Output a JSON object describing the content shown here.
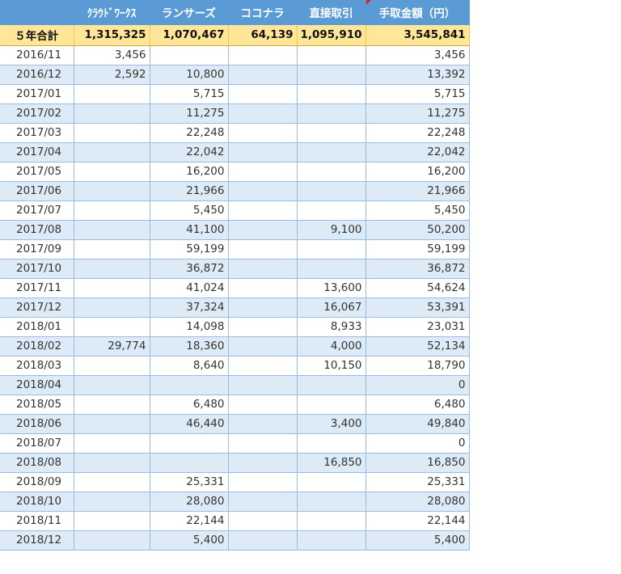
{
  "header": {
    "col_date": "",
    "col_crowdworks": "ｸﾗｳﾄﾞﾜｰｸｽ",
    "col_lancers": "ランサーズ",
    "col_coconala": "ココナラ",
    "col_direct": "直接取引",
    "col_total": "手取金額（円）"
  },
  "total": {
    "label": "５年合計",
    "crowdworks": "1,315,325",
    "lancers": "1,070,467",
    "coconala": "64,139",
    "direct": "1,095,910",
    "total": "3,545,841"
  },
  "rows": [
    {
      "date": "2016/11",
      "crowdworks": "3,456",
      "lancers": "",
      "coconala": "",
      "direct": "",
      "total": "3,456"
    },
    {
      "date": "2016/12",
      "crowdworks": "2,592",
      "lancers": "10,800",
      "coconala": "",
      "direct": "",
      "total": "13,392"
    },
    {
      "date": "2017/01",
      "crowdworks": "",
      "lancers": "5,715",
      "coconala": "",
      "direct": "",
      "total": "5,715"
    },
    {
      "date": "2017/02",
      "crowdworks": "",
      "lancers": "11,275",
      "coconala": "",
      "direct": "",
      "total": "11,275"
    },
    {
      "date": "2017/03",
      "crowdworks": "",
      "lancers": "22,248",
      "coconala": "",
      "direct": "",
      "total": "22,248"
    },
    {
      "date": "2017/04",
      "crowdworks": "",
      "lancers": "22,042",
      "coconala": "",
      "direct": "",
      "total": "22,042"
    },
    {
      "date": "2017/05",
      "crowdworks": "",
      "lancers": "16,200",
      "coconala": "",
      "direct": "",
      "total": "16,200"
    },
    {
      "date": "2017/06",
      "crowdworks": "",
      "lancers": "21,966",
      "coconala": "",
      "direct": "",
      "total": "21,966"
    },
    {
      "date": "2017/07",
      "crowdworks": "",
      "lancers": "5,450",
      "coconala": "",
      "direct": "",
      "total": "5,450"
    },
    {
      "date": "2017/08",
      "crowdworks": "",
      "lancers": "41,100",
      "coconala": "",
      "direct": "9,100",
      "total": "50,200"
    },
    {
      "date": "2017/09",
      "crowdworks": "",
      "lancers": "59,199",
      "coconala": "",
      "direct": "",
      "total": "59,199"
    },
    {
      "date": "2017/10",
      "crowdworks": "",
      "lancers": "36,872",
      "coconala": "",
      "direct": "",
      "total": "36,872"
    },
    {
      "date": "2017/11",
      "crowdworks": "",
      "lancers": "41,024",
      "coconala": "",
      "direct": "13,600",
      "total": "54,624"
    },
    {
      "date": "2017/12",
      "crowdworks": "",
      "lancers": "37,324",
      "coconala": "",
      "direct": "16,067",
      "total": "53,391"
    },
    {
      "date": "2018/01",
      "crowdworks": "",
      "lancers": "14,098",
      "coconala": "",
      "direct": "8,933",
      "total": "23,031"
    },
    {
      "date": "2018/02",
      "crowdworks": "29,774",
      "lancers": "18,360",
      "coconala": "",
      "direct": "4,000",
      "total": "52,134"
    },
    {
      "date": "2018/03",
      "crowdworks": "",
      "lancers": "8,640",
      "coconala": "",
      "direct": "10,150",
      "total": "18,790"
    },
    {
      "date": "2018/04",
      "crowdworks": "",
      "lancers": "",
      "coconala": "",
      "direct": "",
      "total": "0"
    },
    {
      "date": "2018/05",
      "crowdworks": "",
      "lancers": "6,480",
      "coconala": "",
      "direct": "",
      "total": "6,480"
    },
    {
      "date": "2018/06",
      "crowdworks": "",
      "lancers": "46,440",
      "coconala": "",
      "direct": "3,400",
      "total": "49,840"
    },
    {
      "date": "2018/07",
      "crowdworks": "",
      "lancers": "",
      "coconala": "",
      "direct": "",
      "total": "0"
    },
    {
      "date": "2018/08",
      "crowdworks": "",
      "lancers": "",
      "coconala": "",
      "direct": "16,850",
      "total": "16,850"
    },
    {
      "date": "2018/09",
      "crowdworks": "",
      "lancers": "25,331",
      "coconala": "",
      "direct": "",
      "total": "25,331"
    },
    {
      "date": "2018/10",
      "crowdworks": "",
      "lancers": "28,080",
      "coconala": "",
      "direct": "",
      "total": "28,080"
    },
    {
      "date": "2018/11",
      "crowdworks": "",
      "lancers": "22,144",
      "coconala": "",
      "direct": "",
      "total": "22,144"
    },
    {
      "date": "2018/12",
      "crowdworks": "",
      "lancers": "5,400",
      "coconala": "",
      "direct": "",
      "total": "5,400"
    }
  ],
  "colors": {
    "header_bg": "#5b9bd5",
    "total_bg": "#ffe699",
    "band_bg": "#ddebf7",
    "comment_marker": "#e02020"
  }
}
